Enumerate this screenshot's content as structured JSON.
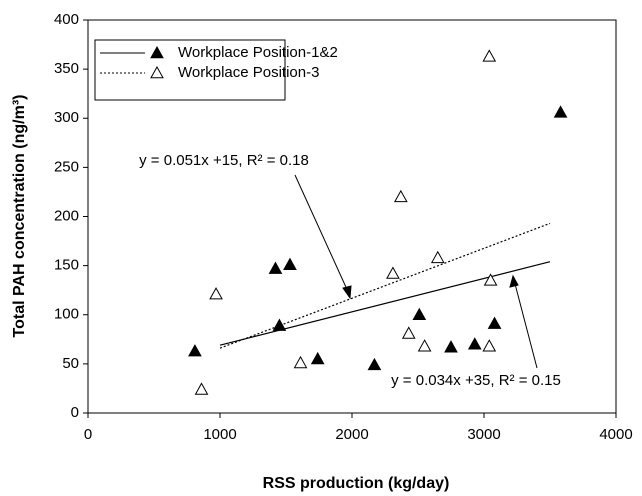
{
  "chart_data": {
    "type": "scatter",
    "x_label": "RSS production (kg/day)",
    "y_label": "Total PAH concentration (ng/m³)",
    "xlim": [
      0,
      4000
    ],
    "xticks": [
      0,
      1000,
      2000,
      3000,
      4000
    ],
    "ylim": [
      0,
      400
    ],
    "yticks": [
      0,
      50,
      100,
      150,
      200,
      250,
      300,
      350,
      400
    ],
    "legend": "upper-left",
    "annotations": [
      "y = 0.051x +15,   R² = 0.18",
      "y = 0.034x +35,   R² = 0.15"
    ],
    "series": [
      {
        "name": "Workplace Position-1&2",
        "color": "#000000",
        "marker": "filled-triangle",
        "x": [
          810,
          1420,
          1450,
          1530,
          1740,
          2170,
          2510,
          2750,
          2930,
          3080,
          3580
        ],
        "values": [
          63,
          147,
          89,
          151,
          55,
          49,
          100,
          67,
          70,
          91,
          306
        ],
        "trend": {
          "x": [
            1000,
            3500
          ],
          "values": [
            69,
            154
          ],
          "dash": "solid"
        }
      },
      {
        "name": "Workplace Position-3",
        "color": "#000000",
        "marker": "open-triangle",
        "x": [
          860,
          970,
          1610,
          2310,
          2370,
          2430,
          2550,
          2650,
          3040,
          3050,
          3040
        ],
        "values": [
          24,
          121,
          51,
          142,
          220,
          81,
          68,
          158,
          363,
          135,
          68
        ],
        "trend": {
          "x": [
            1000,
            3500
          ],
          "values": [
            66,
            193
          ],
          "dash": "dotted"
        }
      }
    ]
  }
}
